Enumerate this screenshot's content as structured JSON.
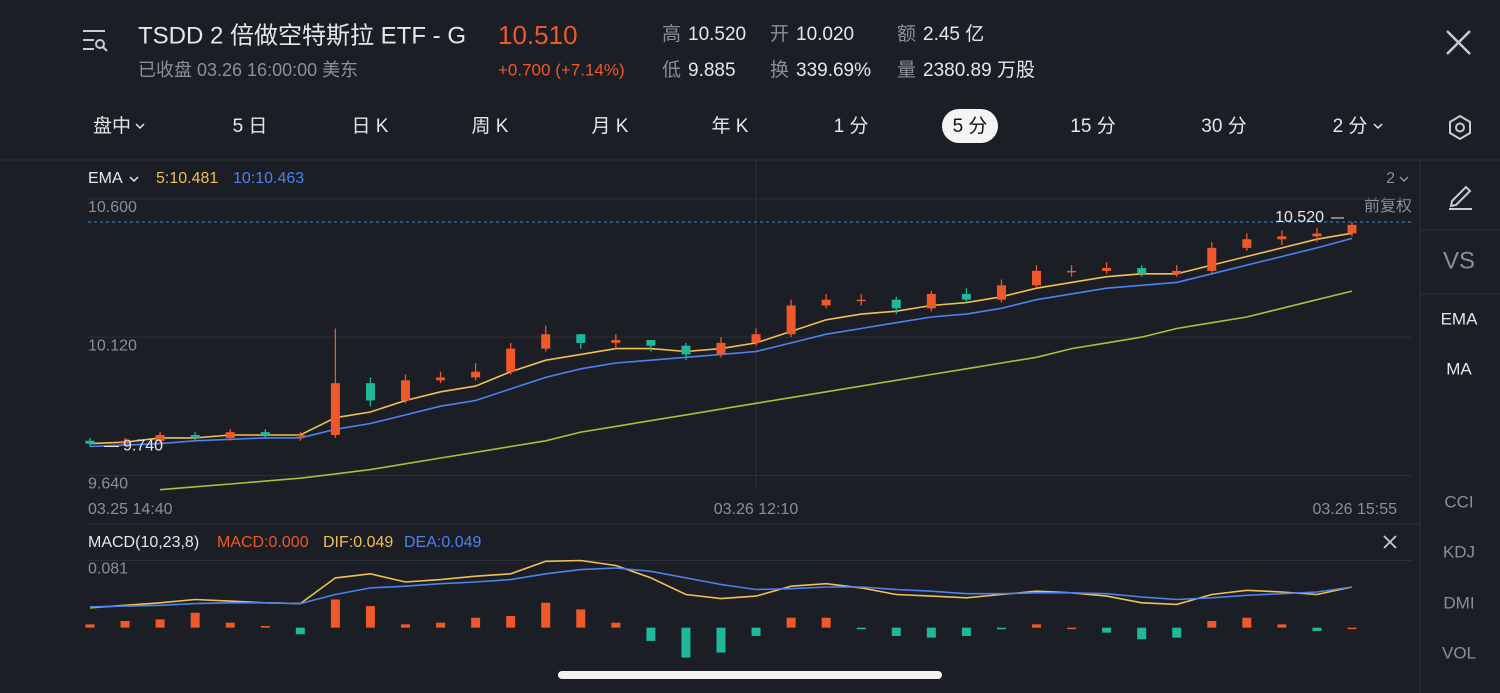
{
  "header": {
    "title": "TSDD 2 倍做空特斯拉 ETF - G",
    "status": "已收盘 03.26 16:00:00 美东",
    "price": "10.510",
    "change": "+0.700 (+7.14%)",
    "stats": [
      {
        "label": "高",
        "value": "10.520"
      },
      {
        "label": "开",
        "value": "10.020"
      },
      {
        "label": "额",
        "value": "2.45 亿"
      },
      {
        "label": "低",
        "value": "9.885"
      },
      {
        "label": "换",
        "value": "339.69%"
      },
      {
        "label": "量",
        "value": "2380.89 万股"
      }
    ]
  },
  "tabs": {
    "items": [
      "盘中",
      "5 日",
      "日 K",
      "周 K",
      "月 K",
      "年 K",
      "1 分",
      "5 分",
      "15 分",
      "30 分",
      "2 分"
    ],
    "active": 7
  },
  "side_menu": [
    "VS",
    "EMA",
    "MA",
    "CCI",
    "KDJ",
    "DMI",
    "VOL"
  ],
  "chart_data": [
    {
      "type": "candlestick",
      "indicator": "EMA",
      "period_selector": "2",
      "adjustment": "前复权",
      "categories": [
        "03.25 14:40",
        null,
        null,
        null,
        null,
        null,
        null,
        null,
        null,
        null,
        null,
        null,
        null,
        null,
        null,
        null,
        null,
        null,
        null,
        "03.26 12:10",
        null,
        null,
        null,
        null,
        null,
        null,
        null,
        null,
        null,
        null,
        null,
        null,
        null,
        null,
        null,
        null,
        "03.26 15:55"
      ],
      "open": [
        9.76,
        9.75,
        9.76,
        9.78,
        9.77,
        9.79,
        9.78,
        9.78,
        9.96,
        9.9,
        9.97,
        9.98,
        10.0,
        10.08,
        10.13,
        10.1,
        10.11,
        10.09,
        10.06,
        10.1,
        10.13,
        10.23,
        10.25,
        10.25,
        10.22,
        10.27,
        10.25,
        10.3,
        10.35,
        10.35,
        10.36,
        10.34,
        10.35,
        10.43,
        10.46,
        10.47,
        10.48
      ],
      "high": [
        9.77,
        9.77,
        9.79,
        9.79,
        9.8,
        9.8,
        9.79,
        10.15,
        9.98,
        9.99,
        10.0,
        10.03,
        10.1,
        10.16,
        10.13,
        10.13,
        10.11,
        10.1,
        10.12,
        10.15,
        10.25,
        10.27,
        10.27,
        10.26,
        10.28,
        10.29,
        10.32,
        10.37,
        10.37,
        10.38,
        10.37,
        10.37,
        10.45,
        10.48,
        10.49,
        10.5,
        10.52
      ],
      "low": [
        9.74,
        9.74,
        9.75,
        9.76,
        9.76,
        9.77,
        9.76,
        9.77,
        9.88,
        9.89,
        9.96,
        9.97,
        9.99,
        10.07,
        10.08,
        10.08,
        10.07,
        10.04,
        10.05,
        10.09,
        10.12,
        10.22,
        10.23,
        10.2,
        10.21,
        10.24,
        10.24,
        10.29,
        10.33,
        10.34,
        10.33,
        10.33,
        10.34,
        10.42,
        10.44,
        10.45,
        10.47
      ],
      "close": [
        9.75,
        9.76,
        9.78,
        9.77,
        9.79,
        9.78,
        9.78,
        9.96,
        9.9,
        9.97,
        9.98,
        10.0,
        10.08,
        10.13,
        10.1,
        10.11,
        10.09,
        10.06,
        10.1,
        10.13,
        10.23,
        10.25,
        10.25,
        10.22,
        10.27,
        10.25,
        10.3,
        10.35,
        10.35,
        10.36,
        10.34,
        10.35,
        10.43,
        10.46,
        10.47,
        10.48,
        10.51
      ],
      "up_color": "#f0582a",
      "down_color": "#1fb89b",
      "series": [
        {
          "name": "5:10.481",
          "color": "#f2bf55",
          "values": [
            9.75,
            9.755,
            9.77,
            9.77,
            9.78,
            9.78,
            9.78,
            9.84,
            9.86,
            9.9,
            9.93,
            9.95,
            10.0,
            10.04,
            10.06,
            10.08,
            10.08,
            10.07,
            10.08,
            10.1,
            10.14,
            10.18,
            10.2,
            10.21,
            10.23,
            10.24,
            10.26,
            10.29,
            10.31,
            10.33,
            10.34,
            10.34,
            10.37,
            10.4,
            10.43,
            10.46,
            10.481
          ]
        },
        {
          "name": "10:10.463",
          "color": "#4d82f0",
          "values": [
            9.74,
            9.745,
            9.75,
            9.76,
            9.765,
            9.77,
            9.77,
            9.8,
            9.82,
            9.85,
            9.88,
            9.9,
            9.94,
            9.98,
            10.01,
            10.03,
            10.04,
            10.05,
            10.06,
            10.07,
            10.1,
            10.13,
            10.15,
            10.17,
            10.19,
            10.2,
            10.22,
            10.25,
            10.27,
            10.29,
            10.3,
            10.31,
            10.34,
            10.37,
            10.4,
            10.43,
            10.463
          ]
        },
        {
          "color": "#a4c23c",
          "values": [
            null,
            null,
            9.59,
            9.6,
            9.61,
            9.62,
            9.63,
            9.645,
            9.66,
            9.68,
            9.7,
            9.72,
            9.74,
            9.76,
            9.79,
            9.81,
            9.83,
            9.85,
            9.87,
            9.89,
            9.91,
            9.93,
            9.95,
            9.97,
            9.99,
            10.01,
            10.03,
            10.05,
            10.08,
            10.1,
            10.12,
            10.15,
            10.17,
            10.19,
            10.22,
            10.25,
            10.28
          ]
        }
      ],
      "ylim": [
        9.589,
        10.631
      ],
      "yticks": [
        {
          "value": 10.6,
          "label": "10.600"
        },
        {
          "value": 10.12,
          "label": "10.120"
        },
        {
          "value": 9.64,
          "label": "9.640"
        }
      ],
      "grid": true,
      "reference": {
        "value": 10.52,
        "label": "10.520"
      },
      "low_marker": {
        "value": 9.74,
        "label": "9.740"
      }
    },
    {
      "type": "macd",
      "title": "MACD(10,23,8)",
      "histogram": {
        "name": "MACD:0.000",
        "up_color": "#f0582a",
        "down_color": "#1fb89b",
        "values": [
          0.004,
          0.008,
          0.01,
          0.018,
          0.006,
          0.002,
          -0.008,
          0.034,
          0.026,
          0.004,
          0.006,
          0.012,
          0.014,
          0.03,
          0.022,
          0.006,
          -0.016,
          -0.036,
          -0.03,
          -0.01,
          0.012,
          0.012,
          -0.002,
          -0.01,
          -0.012,
          -0.01,
          -0.002,
          0.004,
          0.0,
          -0.006,
          -0.014,
          -0.012,
          0.008,
          0.012,
          0.004,
          -0.004,
          0.0
        ]
      },
      "series": [
        {
          "name": "DIF:0.049",
          "color": "#f2bf55",
          "values": [
            0.024,
            0.027,
            0.03,
            0.034,
            0.032,
            0.03,
            0.029,
            0.06,
            0.065,
            0.055,
            0.058,
            0.062,
            0.065,
            0.08,
            0.081,
            0.075,
            0.06,
            0.04,
            0.035,
            0.038,
            0.05,
            0.053,
            0.048,
            0.04,
            0.038,
            0.036,
            0.04,
            0.044,
            0.042,
            0.038,
            0.03,
            0.028,
            0.04,
            0.045,
            0.043,
            0.04,
            0.049
          ]
        },
        {
          "name": "DEA:0.049",
          "color": "#4d82f0",
          "values": [
            0.025,
            0.026,
            0.027,
            0.029,
            0.03,
            0.03,
            0.029,
            0.04,
            0.048,
            0.05,
            0.053,
            0.055,
            0.058,
            0.065,
            0.07,
            0.072,
            0.068,
            0.06,
            0.052,
            0.046,
            0.047,
            0.049,
            0.049,
            0.046,
            0.044,
            0.041,
            0.041,
            0.042,
            0.042,
            0.041,
            0.037,
            0.034,
            0.036,
            0.039,
            0.041,
            0.043,
            0.049
          ]
        }
      ],
      "ylim": [
        -0.039,
        0.084
      ],
      "yticks": [
        0.081
      ],
      "grid": true
    }
  ]
}
